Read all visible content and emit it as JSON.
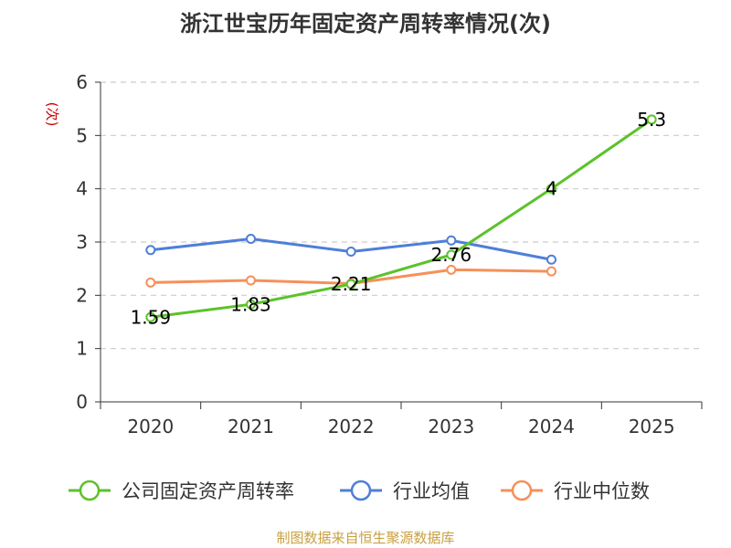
{
  "chart_data": {
    "type": "line",
    "title": "浙江世宝历年固定资产周转率情况(次)",
    "ylabel": "(次)",
    "xlabel": "",
    "categories": [
      "2020",
      "2021",
      "2022",
      "2023",
      "2024",
      "2025"
    ],
    "ylim": [
      0,
      6
    ],
    "yticks": [
      "0",
      "1",
      "2",
      "3",
      "4",
      "5",
      "6"
    ],
    "grid": true,
    "legend_position": "bottom",
    "series": [
      {
        "name": "公司固定资产周转率",
        "color": "#5cc22b",
        "values": [
          1.59,
          1.83,
          2.21,
          2.76,
          4,
          5.3
        ],
        "labels": [
          "1.59",
          "1.83",
          "2.21",
          "2.76",
          "4",
          "5.3"
        ]
      },
      {
        "name": "行业均值",
        "color": "#4e7fd8",
        "values": [
          2.85,
          3.06,
          2.82,
          3.03,
          2.67,
          null
        ]
      },
      {
        "name": "行业中位数",
        "color": "#f6905a",
        "values": [
          2.24,
          2.28,
          2.22,
          2.48,
          2.45,
          null
        ]
      }
    ]
  },
  "source": "制图数据来自恒生聚源数据库",
  "colors": {
    "ylabel": "#cc0000",
    "source": "#c8a040",
    "grid": "#cccccc",
    "axis": "#333333"
  }
}
